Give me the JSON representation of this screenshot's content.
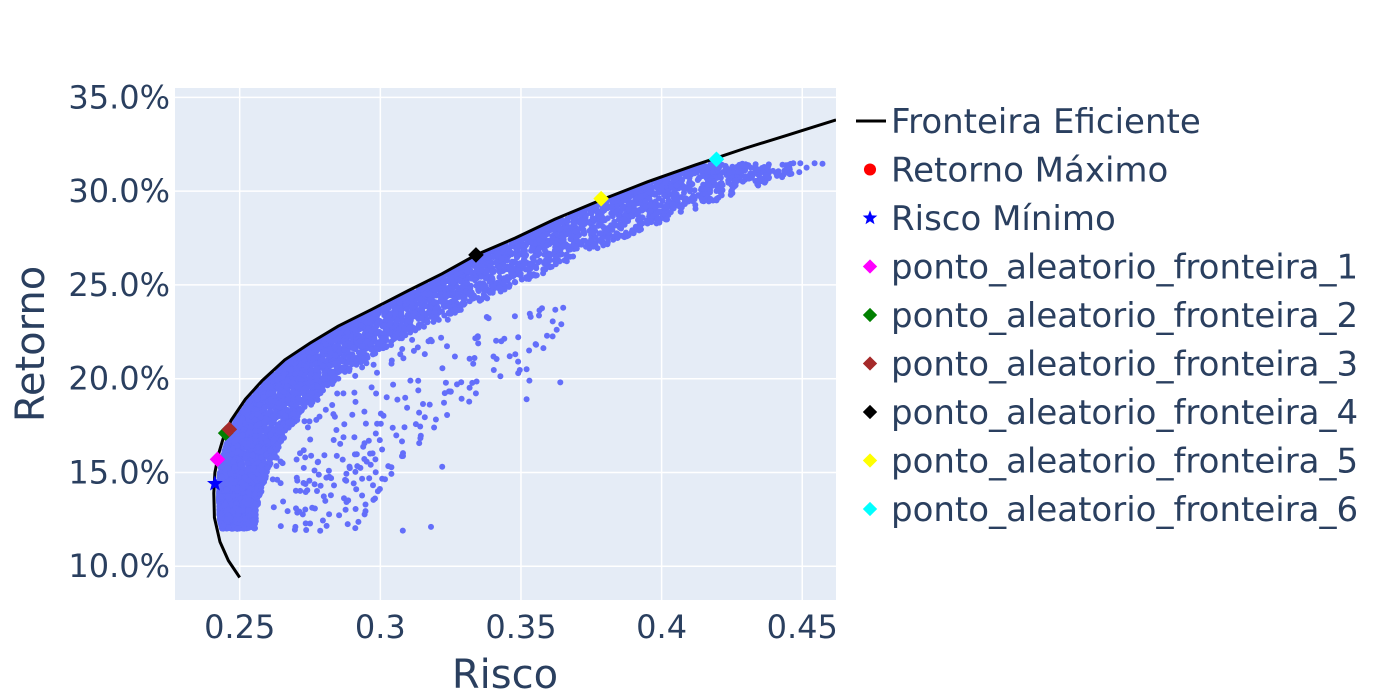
{
  "chart_data": {
    "type": "scatter",
    "xlabel": "Risco",
    "ylabel": "Retorno",
    "xlim": [
      0.227,
      0.462
    ],
    "ylim": [
      0.082,
      0.355
    ],
    "x_ticks": [
      0.25,
      0.3,
      0.35,
      0.4,
      0.45
    ],
    "x_tick_labels": [
      "0.25",
      "0.3",
      "0.35",
      "0.4",
      "0.45"
    ],
    "y_ticks": [
      0.1,
      0.15,
      0.2,
      0.25,
      0.3,
      0.35
    ],
    "y_tick_labels": [
      "10.0%",
      "15.0%",
      "20.0%",
      "25.0%",
      "30.0%",
      "35.0%"
    ],
    "grid": true,
    "legend_position": "right",
    "colors": {
      "plot_bg": "#e5ecf6",
      "grid": "#ffffff",
      "text": "#2a3f5f",
      "cloud": "#636efa",
      "frontier": "#000000"
    },
    "frontier": {
      "name": "Fronteira Eficiente",
      "color": "#000000",
      "points": [
        [
          0.25,
          0.094
        ],
        [
          0.246,
          0.103
        ],
        [
          0.243,
          0.113
        ],
        [
          0.241,
          0.126
        ],
        [
          0.2408,
          0.139
        ],
        [
          0.2412,
          0.15
        ],
        [
          0.2425,
          0.16
        ],
        [
          0.2445,
          0.17
        ],
        [
          0.247,
          0.178
        ],
        [
          0.252,
          0.189
        ],
        [
          0.258,
          0.199
        ],
        [
          0.266,
          0.21
        ],
        [
          0.275,
          0.219
        ],
        [
          0.285,
          0.228
        ],
        [
          0.297,
          0.237
        ],
        [
          0.31,
          0.247
        ],
        [
          0.322,
          0.256
        ],
        [
          0.334,
          0.266
        ],
        [
          0.348,
          0.275
        ],
        [
          0.362,
          0.285
        ],
        [
          0.378,
          0.295
        ],
        [
          0.395,
          0.305
        ],
        [
          0.412,
          0.314
        ],
        [
          0.42,
          0.318
        ],
        [
          0.43,
          0.323
        ],
        [
          0.445,
          0.33
        ],
        [
          0.462,
          0.338
        ]
      ]
    },
    "cloud": {
      "name": "",
      "color": "#636efa"
    },
    "markers": [
      {
        "name": "Retorno Máximo",
        "symbol": "circle",
        "color": "#ff0000",
        "x": null,
        "y": null
      },
      {
        "name": "Risco Mínimo",
        "symbol": "star",
        "color": "#0000ff",
        "x": 0.2412,
        "y": 0.144
      },
      {
        "name": "ponto_aleatorio_fronteira_1",
        "symbol": "diamond",
        "color": "#ff00ff",
        "x": 0.2421,
        "y": 0.157
      },
      {
        "name": "ponto_aleatorio_fronteira_2",
        "symbol": "diamond",
        "color": "#008000",
        "x": 0.245,
        "y": 0.171
      },
      {
        "name": "ponto_aleatorio_fronteira_3",
        "symbol": "diamond",
        "color": "#a52a2a",
        "x": 0.2463,
        "y": 0.173
      },
      {
        "name": "ponto_aleatorio_fronteira_4",
        "symbol": "diamond",
        "color": "#000000",
        "x": 0.334,
        "y": 0.266
      },
      {
        "name": "ponto_aleatorio_fronteira_5",
        "symbol": "diamond",
        "color": "#ffff00",
        "x": 0.3785,
        "y": 0.296
      },
      {
        "name": "ponto_aleatorio_fronteira_6",
        "symbol": "diamond",
        "color": "#00ffff",
        "x": 0.4195,
        "y": 0.317
      }
    ]
  }
}
